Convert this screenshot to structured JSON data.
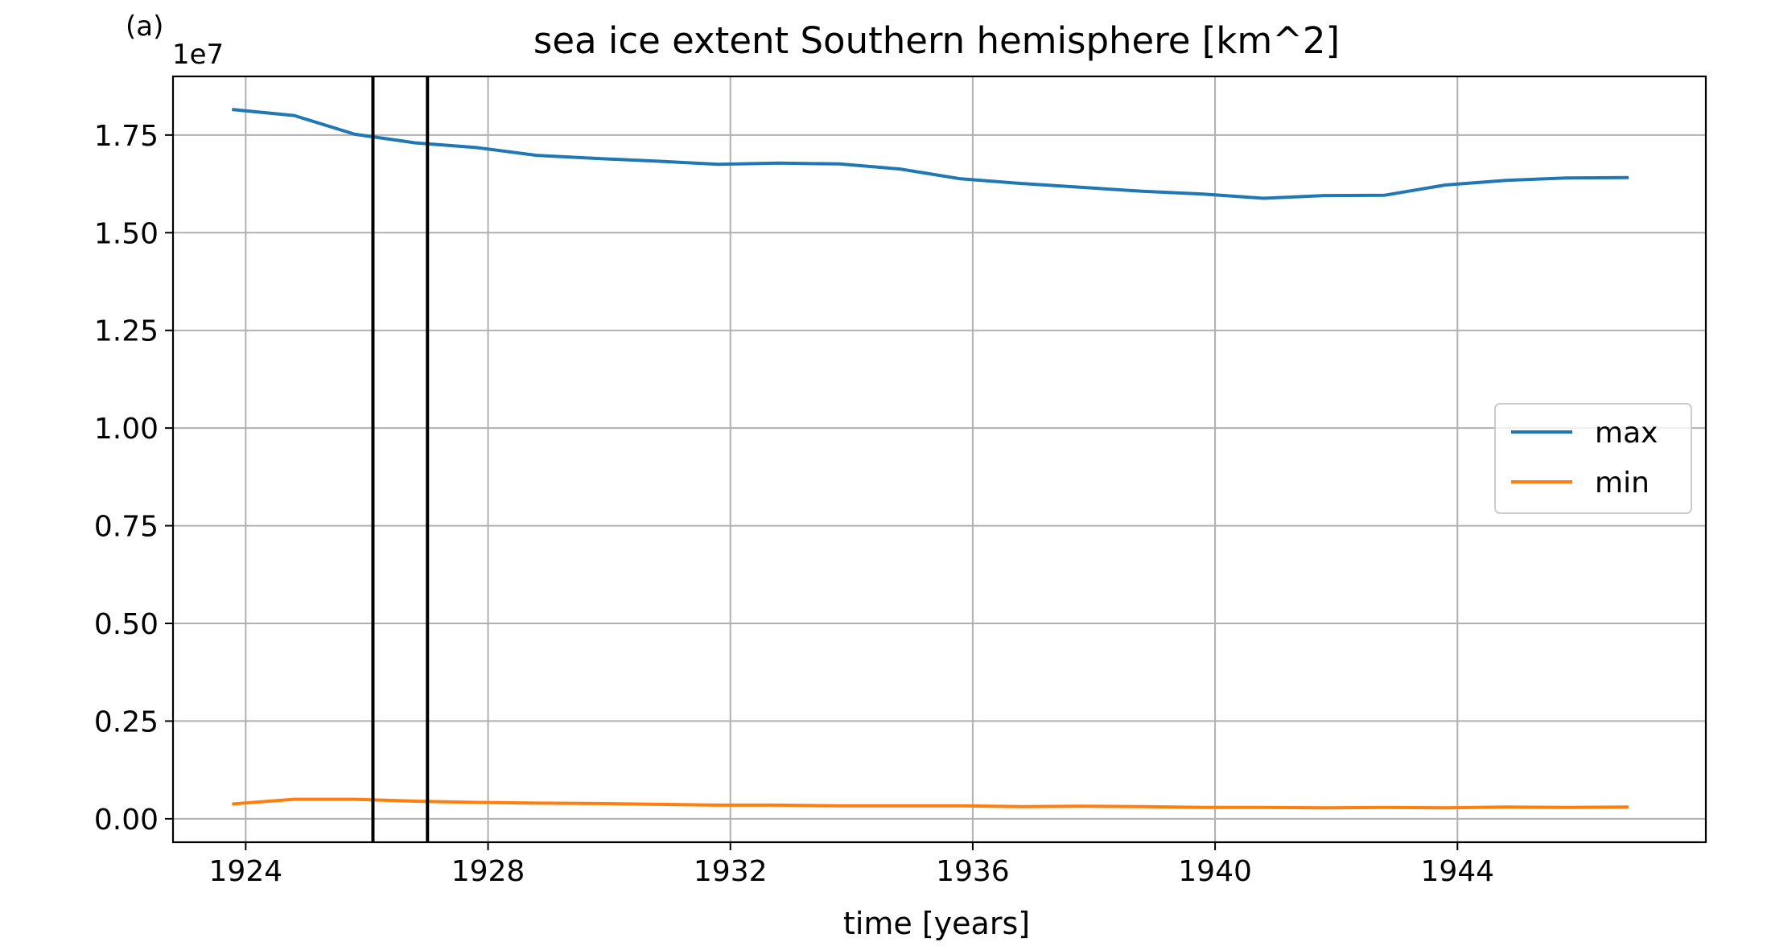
{
  "panel_label": "(a)",
  "chart_data": {
    "type": "line",
    "title": "sea ice extent Southern hemisphere [km^2]",
    "xlabel": "time [years]",
    "ylabel": "",
    "y_offset_label": "1e7",
    "y_scale_factor": 10000000,
    "xlim": [
      1922.8,
      1948.1
    ],
    "ylim": [
      -0.06,
      1.9
    ],
    "x_ticks": [
      1924,
      1928,
      1932,
      1936,
      1940,
      1944
    ],
    "x_tick_labels": [
      "1924",
      "1928",
      "1932",
      "1936",
      "1940",
      "1944"
    ],
    "y_ticks": [
      0.0,
      0.25,
      0.5,
      0.75,
      1.0,
      1.25,
      1.5,
      1.75
    ],
    "y_tick_labels": [
      "0.00",
      "0.25",
      "0.50",
      "0.75",
      "1.00",
      "1.25",
      "1.50",
      "1.75"
    ],
    "grid": true,
    "legend_position": "center-right",
    "x": [
      1923.8,
      1924.8,
      1925.8,
      1926.8,
      1927.8,
      1928.8,
      1929.8,
      1930.8,
      1931.8,
      1932.8,
      1933.8,
      1934.8,
      1935.8,
      1936.8,
      1937.8,
      1938.8,
      1939.8,
      1940.8,
      1941.8,
      1942.8,
      1943.8,
      1944.8,
      1945.8,
      1946.8
    ],
    "series": [
      {
        "name": "max",
        "color": "#1f77b4",
        "values": [
          1.815,
          1.8,
          1.752,
          1.73,
          1.718,
          1.698,
          1.69,
          1.683,
          1.675,
          1.678,
          1.676,
          1.663,
          1.638,
          1.626,
          1.616,
          1.606,
          1.599,
          1.588,
          1.595,
          1.596,
          1.622,
          1.634,
          1.64,
          1.641
        ]
      },
      {
        "name": "min",
        "color": "#ff7f0e",
        "values": [
          0.038,
          0.05,
          0.05,
          0.045,
          0.042,
          0.04,
          0.039,
          0.037,
          0.035,
          0.035,
          0.033,
          0.033,
          0.033,
          0.031,
          0.032,
          0.031,
          0.029,
          0.029,
          0.028,
          0.029,
          0.028,
          0.03,
          0.029,
          0.03
        ]
      }
    ],
    "vertical_lines": [
      {
        "x": 1926.1,
        "color": "#000000"
      },
      {
        "x": 1927.0,
        "color": "#000000"
      }
    ]
  }
}
